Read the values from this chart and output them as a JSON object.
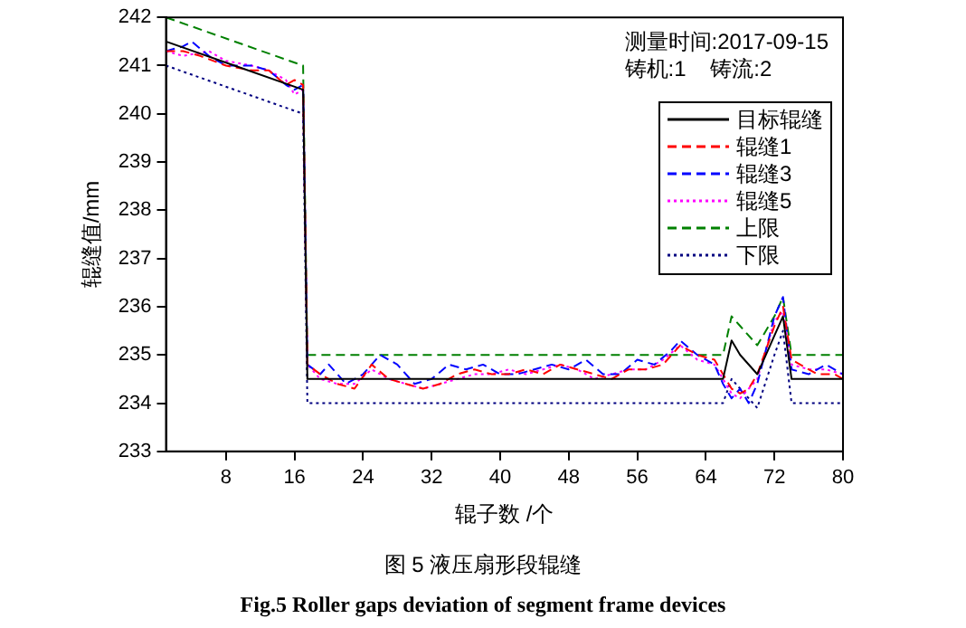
{
  "chart_data": {
    "type": "line",
    "xlabel": "辊子数 /个",
    "ylabel": "辊缝值/mm",
    "xlim": [
      1,
      80
    ],
    "xticks": [
      8,
      16,
      24,
      32,
      40,
      48,
      56,
      64,
      72,
      80
    ],
    "ylim": [
      233,
      242
    ],
    "yticks": [
      233,
      234,
      235,
      236,
      237,
      238,
      239,
      240,
      241,
      242
    ],
    "grid": false,
    "legend": "top right",
    "marker": "none",
    "annotations": [
      "测量时间:2017-09-15",
      "铸机:1    铸流:2",
      "图 5 液压扇形段辊缝",
      "Fig.5 Roller gaps deviation of segment frame devices"
    ],
    "series": [
      {
        "name": "目标辊缝",
        "color": "#000000",
        "line_style": "solid",
        "x": [
          1,
          17,
          17.5,
          66,
          67,
          68,
          70,
          72,
          73,
          74,
          80
        ],
        "values": [
          241.5,
          240.5,
          234.5,
          234.5,
          235.3,
          235.0,
          234.6,
          235.4,
          235.8,
          234.5,
          234.5
        ]
      },
      {
        "name": "辊缝1",
        "color": "#ff0000",
        "line_style": "dashed",
        "x": [
          1,
          3,
          5,
          8,
          11,
          13,
          15,
          16,
          17,
          17.5,
          19,
          21,
          23,
          25,
          27,
          29,
          31,
          33,
          35,
          37,
          39,
          41,
          43,
          45,
          47,
          49,
          51,
          53,
          55,
          57,
          59,
          61,
          63,
          65,
          66,
          67,
          68,
          69,
          70,
          72,
          73,
          74,
          75,
          77,
          79,
          80
        ],
        "values": [
          241.3,
          241.3,
          241.2,
          241.0,
          240.9,
          240.9,
          240.6,
          240.7,
          240.6,
          234.8,
          234.6,
          234.4,
          234.3,
          234.8,
          234.5,
          234.4,
          234.3,
          234.4,
          234.6,
          234.7,
          234.6,
          234.6,
          234.7,
          234.6,
          234.8,
          234.7,
          234.6,
          234.5,
          234.7,
          234.7,
          234.8,
          235.2,
          235.0,
          234.9,
          234.6,
          234.3,
          234.2,
          234.3,
          234.6,
          235.6,
          236.0,
          234.9,
          234.8,
          234.6,
          234.6,
          234.5
        ]
      },
      {
        "name": "辊缝3",
        "color": "#0000ff",
        "line_style": "dashed",
        "x": [
          1,
          3,
          4,
          6,
          8,
          11,
          13,
          15,
          16,
          17,
          17.5,
          19,
          20,
          22,
          24,
          26,
          28,
          30,
          32,
          34,
          36,
          38,
          40,
          42,
          44,
          46,
          48,
          50,
          52,
          54,
          56,
          58,
          60,
          61,
          63,
          65,
          66,
          67,
          68,
          69,
          70,
          72,
          73,
          74,
          76,
          78,
          80
        ],
        "values": [
          241.3,
          241.4,
          241.5,
          241.2,
          241.0,
          241.0,
          240.9,
          240.6,
          240.5,
          240.6,
          234.8,
          234.6,
          234.8,
          234.4,
          234.6,
          235.0,
          234.8,
          234.4,
          234.5,
          234.8,
          234.7,
          234.8,
          234.6,
          234.6,
          234.7,
          234.8,
          234.7,
          234.9,
          234.6,
          234.6,
          234.9,
          234.8,
          235.1,
          235.3,
          235.0,
          234.8,
          234.4,
          234.1,
          234.3,
          234.0,
          234.4,
          235.8,
          236.2,
          234.7,
          234.6,
          234.8,
          234.6
        ]
      },
      {
        "name": "辊缝5",
        "color": "#ff00ff",
        "line_style": "dotted",
        "x": [
          1,
          3,
          6,
          8,
          11,
          13,
          15,
          16,
          17,
          17.5,
          19,
          21,
          23,
          25,
          27,
          29,
          31,
          33,
          35,
          37,
          39,
          41,
          43,
          45,
          47,
          49,
          51,
          53,
          55,
          57,
          59,
          61,
          63,
          65,
          66,
          67,
          68,
          70,
          72,
          73,
          74,
          76,
          78,
          80
        ],
        "values": [
          241.3,
          241.2,
          241.3,
          241.1,
          241.0,
          240.9,
          240.7,
          240.4,
          240.5,
          234.8,
          234.5,
          234.4,
          234.4,
          234.7,
          234.5,
          234.4,
          234.3,
          234.4,
          234.5,
          234.6,
          234.6,
          234.7,
          234.6,
          234.7,
          234.8,
          234.7,
          234.5,
          234.6,
          234.7,
          234.7,
          234.9,
          235.2,
          234.9,
          234.8,
          234.5,
          234.2,
          234.1,
          234.5,
          235.7,
          235.9,
          234.8,
          234.7,
          234.7,
          234.6
        ]
      },
      {
        "name": "上限",
        "color": "#008000",
        "line_style": "dashed",
        "x": [
          1,
          17,
          17.5,
          66,
          67,
          68,
          70,
          72,
          73,
          74,
          80
        ],
        "values": [
          242.0,
          241.0,
          235.0,
          235.0,
          235.8,
          235.6,
          235.2,
          235.8,
          236.2,
          235.0,
          235.0
        ]
      },
      {
        "name": "下限",
        "color": "#000080",
        "line_style": "dotted",
        "x": [
          1,
          17,
          17.5,
          66,
          67,
          68,
          70,
          72,
          73,
          74,
          80
        ],
        "values": [
          241.0,
          240.0,
          234.0,
          234.0,
          234.5,
          234.3,
          233.9,
          235.0,
          235.5,
          234.0,
          234.0
        ]
      }
    ]
  }
}
